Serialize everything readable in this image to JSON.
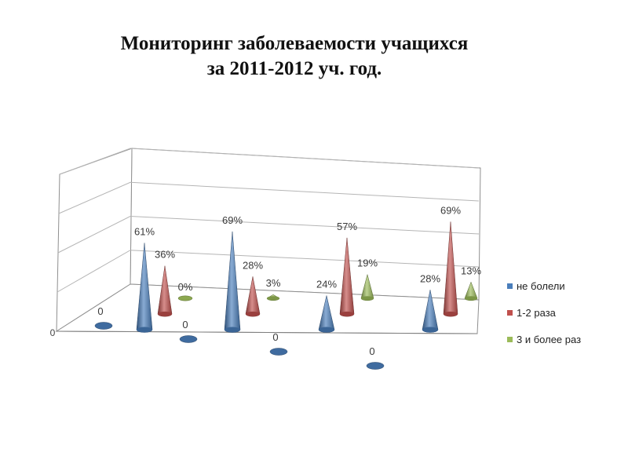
{
  "slide": {
    "title_line1": "Мониторинг заболеваемости учащихся",
    "title_line2": "за 2011-2012 уч. год."
  },
  "chart_data": {
    "type": "bar",
    "style": "3d-cone",
    "categories": [
      "",
      "",
      "",
      ""
    ],
    "series": [
      {
        "name": "не болели",
        "color": "#4a7ebb",
        "values": [
          61,
          69,
          24,
          28
        ],
        "labels": [
          "61%",
          "69%",
          "24%",
          "28%"
        ]
      },
      {
        "name": "1-2 раза",
        "color": "#c0504d",
        "values": [
          36,
          28,
          57,
          69
        ],
        "labels": [
          "36%",
          "28%",
          "57%",
          "69%"
        ]
      },
      {
        "name": "3 и более раз",
        "color": "#9bbb59",
        "values": [
          0,
          3,
          19,
          13
        ],
        "labels": [
          "0%",
          "3%",
          "19%",
          "13%"
        ]
      }
    ],
    "zero_markers": [
      "0",
      "0",
      "0",
      "0"
    ],
    "axis_tick_label": "0",
    "ylim": [
      0,
      80
    ],
    "grid": true,
    "legend": "right"
  }
}
